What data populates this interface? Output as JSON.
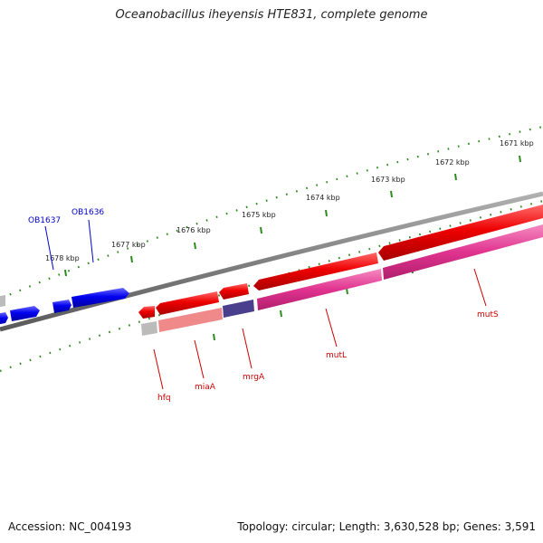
{
  "title": "Oceanobacillus iheyensis HTE831, complete genome",
  "accession": "Accession: NC_004193",
  "summary": "Topology: circular; Length: 3,630,528 bp; Genes: 3,591",
  "kbp_ticks": [
    "1678 kbp",
    "1677 kbp",
    "1676 kbp",
    "1675 kbp",
    "1674 kbp",
    "1673 kbp",
    "1672 kbp",
    "1671 kbp"
  ],
  "gene_labels": [
    {
      "name": "OB1637",
      "color": "#0000cc"
    },
    {
      "name": "OB1636",
      "color": "#0000cc"
    },
    {
      "name": "hfq",
      "color": "#cc0000"
    },
    {
      "name": "miaA",
      "color": "#cc0000"
    },
    {
      "name": "mrgA",
      "color": "#cc0000"
    },
    {
      "name": "mutL",
      "color": "#cc0000"
    },
    {
      "name": "mutS",
      "color": "#cc0000"
    }
  ],
  "colors": {
    "backbone": "#808080",
    "tick": "#2e8b1e",
    "forward_gene": "#ee0000",
    "other_strand_gene": "#0000ee",
    "cds": "#e0338f",
    "cds_light": "#f08a8a",
    "cds_purple": "#4a3f8c",
    "cds_gray": "#bbbbbb"
  }
}
